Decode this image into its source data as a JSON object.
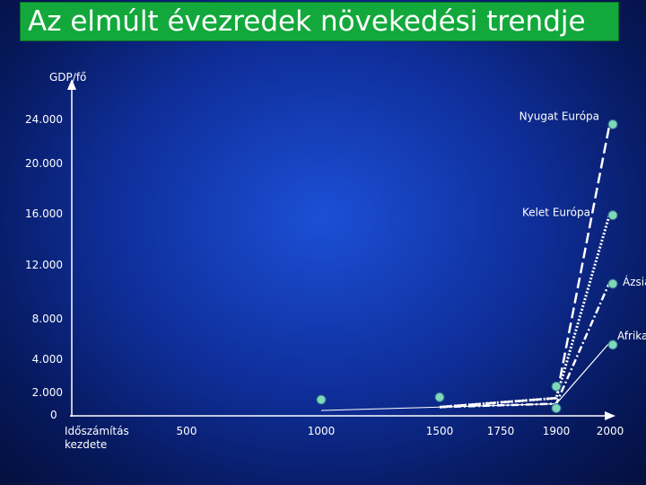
{
  "slide": {
    "title": "Az elmúlt évezredek növekedési trendje"
  },
  "chart_data": {
    "type": "line",
    "ylabel": "GDP/fő",
    "xlabel": "",
    "ylim": [
      0,
      24000
    ],
    "grid": false,
    "legend": "none",
    "y_ticks": [
      {
        "value": 0,
        "label": "0"
      },
      {
        "value": 2000,
        "label": "2.000"
      },
      {
        "value": 4000,
        "label": "4.000"
      },
      {
        "value": 8000,
        "label": "8.000"
      },
      {
        "value": 12000,
        "label": "12.000"
      },
      {
        "value": 16000,
        "label": "16.000"
      },
      {
        "value": 20000,
        "label": "20.000"
      },
      {
        "value": 24000,
        "label": "24.000"
      }
    ],
    "x_ticks": [
      {
        "value": 0,
        "label": "Időszámítás kezdete"
      },
      {
        "value": 500,
        "label": "500"
      },
      {
        "value": 1000,
        "label": "1000"
      },
      {
        "value": 1500,
        "label": "1500"
      },
      {
        "value": 1750,
        "label": "1750"
      },
      {
        "value": 1900,
        "label": "1900"
      },
      {
        "value": 2000,
        "label": "2000"
      }
    ],
    "common_path": [
      {
        "x": 1000,
        "y": 400
      },
      {
        "x": 1500,
        "y": 700
      }
    ],
    "series": [
      {
        "name": "Nyugat Európa",
        "style": "dashed",
        "color": "#ffffff",
        "points": [
          {
            "x": 1500,
            "y": 700
          },
          {
            "x": 1900,
            "y": 1500
          },
          {
            "x": 2000,
            "y": 23800
          }
        ]
      },
      {
        "name": "Kelet Európa",
        "style": "dotted",
        "color": "#ffffff",
        "points": [
          {
            "x": 1500,
            "y": 700
          },
          {
            "x": 1900,
            "y": 1500
          },
          {
            "x": 2000,
            "y": 16100
          }
        ]
      },
      {
        "name": "Ázsia",
        "style": "dash-dot",
        "color": "#ffffff",
        "points": [
          {
            "x": 1500,
            "y": 700
          },
          {
            "x": 1900,
            "y": 1000
          },
          {
            "x": 2000,
            "y": 10800
          }
        ]
      },
      {
        "name": "Afrika",
        "style": "solid",
        "color": "#ffffff",
        "points": [
          {
            "x": 1500,
            "y": 700
          },
          {
            "x": 1900,
            "y": 1000
          },
          {
            "x": 2000,
            "y": 5700
          }
        ]
      }
    ],
    "marker_color": "#7fd8b8"
  }
}
